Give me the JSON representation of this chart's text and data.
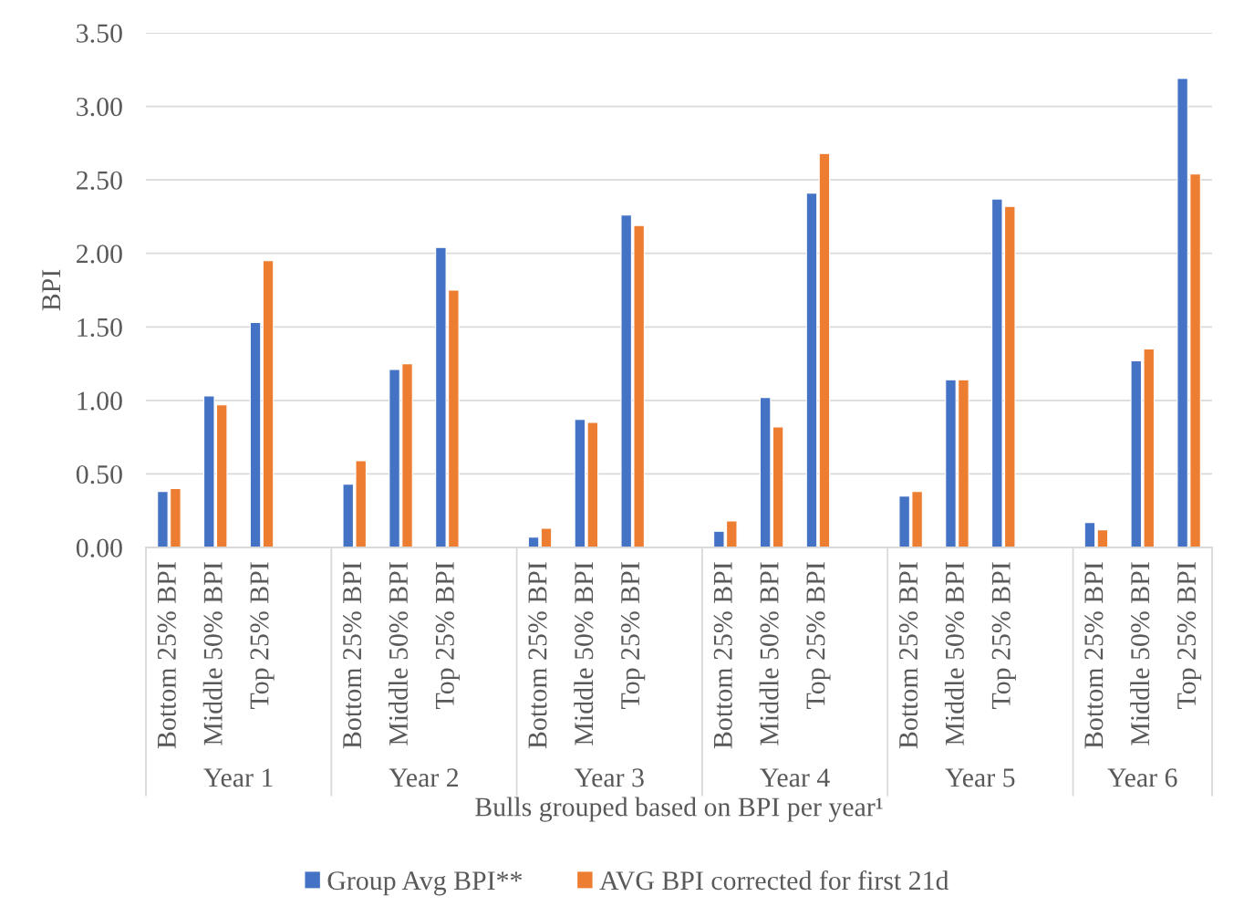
{
  "chart_data": {
    "type": "bar",
    "xlabel": "Bulls grouped based on BPI per year¹",
    "ylabel": "BPI",
    "categories": [
      "Bottom 25% BPI",
      "Middle 50% BPI",
      "Top 25% BPI",
      null,
      "Bottom 25% BPI",
      "Middle 50% BPI",
      "Top 25% BPI",
      null,
      "Bottom 25% BPI",
      "Middle 50% BPI",
      "Top 25% BPI",
      null,
      "Bottom 25% BPI",
      "Middle 50% BPI",
      "Top 25% BPI",
      null,
      "Bottom 25% BPI",
      "Middle 50% BPI",
      "Top 25% BPI",
      null,
      "Bottom 25% BPI",
      "Middle 50% BPI",
      "Top 25% BPI"
    ],
    "series": [
      {
        "name": "Group Avg BPI**",
        "color": "#4472c4",
        "values": [
          0.38,
          1.03,
          1.53,
          null,
          0.43,
          1.21,
          2.04,
          null,
          0.07,
          0.87,
          2.26,
          null,
          0.11,
          1.02,
          2.41,
          null,
          0.35,
          1.14,
          2.37,
          null,
          0.17,
          1.27,
          3.19
        ]
      },
      {
        "name": "AVG BPI corrected for first 21d",
        "color": "#ed7d31",
        "values": [
          0.4,
          0.97,
          1.95,
          null,
          0.59,
          1.25,
          1.75,
          null,
          0.13,
          0.85,
          2.19,
          null,
          0.18,
          0.82,
          2.68,
          null,
          0.38,
          1.14,
          2.32,
          null,
          0.12,
          1.35,
          2.54
        ]
      }
    ],
    "annotations": [
      "Year 1",
      "Year 2",
      "Year 3",
      "Year 4",
      "Year 5",
      "Year 6"
    ],
    "ylim": [
      0,
      3.5
    ],
    "yticks": [
      {
        "value": 0,
        "label": "0.00"
      },
      {
        "value": 0.5,
        "label": "0.50"
      },
      {
        "value": 1,
        "label": "1.00"
      },
      {
        "value": 1.5,
        "label": "1.50"
      },
      {
        "value": 2,
        "label": "2.00"
      },
      {
        "value": 2.5,
        "label": "2.50"
      },
      {
        "value": 3,
        "label": "3.00"
      },
      {
        "value": 3.5,
        "label": "3.50"
      }
    ],
    "grid": "y",
    "legend": "bottom"
  }
}
